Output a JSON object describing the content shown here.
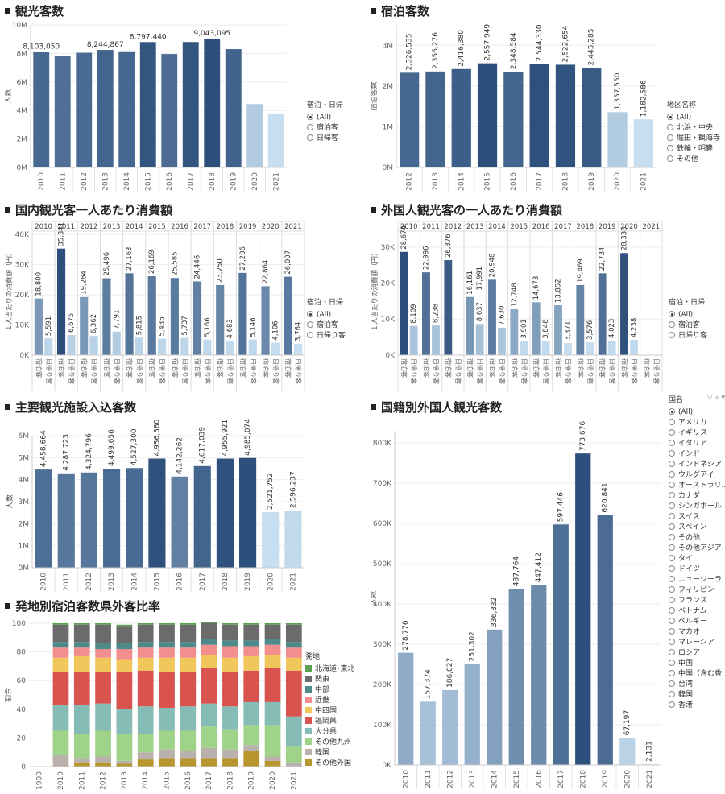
{
  "titles": {
    "p1": "観光客数",
    "p2": "宿泊客数",
    "p3": "国内観光客一人あたり消費額",
    "p4": "外国人観光客の一人あたり消費額",
    "p5": "主要観光施設入込客数",
    "p6": "国籍別外国人観光客数",
    "p7": "発地別宿泊客数県外客比率"
  },
  "legends": {
    "stay_type": {
      "title": "宿泊・日帰",
      "items": [
        "(All)",
        "宿泊客",
        "日帰客"
      ]
    },
    "stay_type2": {
      "title": "宿泊・日帰",
      "items": [
        "(All)",
        "宿泊客",
        "日帰り客"
      ]
    },
    "region": {
      "title": "地区名称",
      "items": [
        "(All)",
        "北浜・中央",
        "堀田・観海寺",
        "鉄輪・明礬",
        "その他"
      ]
    },
    "country": {
      "title": "国名",
      "items": [
        "(All)",
        "アメリカ",
        "イギリス",
        "イタリア",
        "インド",
        "インドネシア",
        "ウルグアイ",
        "オーストラリ...",
        "カナダ",
        "シンガポール",
        "スイス",
        "スペイン",
        "その他",
        "その他アジア",
        "タイ",
        "ドイツ",
        "ニュージーラ...",
        "フィリピン",
        "フランス",
        "ベトナム",
        "ベルギー",
        "マカオ",
        "マレーシア",
        "ロシア",
        "中国",
        "中国（含む香...",
        "台湾",
        "韓国",
        "香港"
      ]
    },
    "origin": {
      "title": "発地",
      "items": [
        "北海道･東北",
        "関東",
        "中部",
        "近畿",
        "中四国",
        "福岡県",
        "大分県",
        "その他九州",
        "韓国",
        "その他外国"
      ]
    }
  },
  "colors": {
    "origin": [
      "#59a14f",
      "#6b6b6b",
      "#4e8a8a",
      "#f28e8e",
      "#f1c75b",
      "#d9534f",
      "#86bcb6",
      "#9fd38a",
      "#bab0ac",
      "#b8962f"
    ]
  },
  "chart_data": [
    {
      "id": "tourists",
      "type": "bar",
      "title": "観光客数",
      "ylabel": "人数",
      "categories": [
        "2010",
        "2011",
        "2012",
        "2013",
        "2014",
        "2015",
        "2016",
        "2017",
        "2018",
        "2019",
        "2020",
        "2021"
      ],
      "values": [
        8103050,
        7850000,
        8050000,
        8244867,
        8150000,
        8797440,
        7960000,
        8800000,
        9043095,
        8300000,
        4450000,
        3750000
      ],
      "labels": [
        "8,103,050",
        "",
        "",
        "8,244,867",
        "",
        "8,797,440",
        "",
        "",
        "9,043,095",
        "",
        "",
        ""
      ],
      "ylim": [
        0,
        10000000
      ],
      "yticks": [
        "0M",
        "2M",
        "4M",
        "6M",
        "8M",
        "10M"
      ]
    },
    {
      "id": "overnight",
      "type": "bar",
      "title": "宿泊客数",
      "ylabel": "宿泊客数",
      "categories": [
        "2012",
        "2013",
        "2014",
        "2015",
        "2016",
        "2017",
        "2018",
        "2019",
        "2020",
        "2021"
      ],
      "values": [
        2326535,
        2356276,
        2416380,
        2557949,
        2348584,
        2544330,
        2522654,
        2445285,
        1357550,
        1182586
      ],
      "labels": [
        "2,326,535",
        "2,356,276",
        "2,416,380",
        "2,557,949",
        "2,348,584",
        "2,544,330",
        "2,522,654",
        "2,445,285",
        "1,357,550",
        "1,182,586"
      ],
      "ylim": [
        0,
        3500000
      ],
      "yticks": [
        "0M",
        "1M",
        "2M",
        "3M"
      ]
    },
    {
      "id": "domestic_spend",
      "type": "bar",
      "title": "国内観光客一人あたり消費額",
      "ylabel": "１人当たりの消費額（円）",
      "years": [
        "2010",
        "2011",
        "2012",
        "2013",
        "2014",
        "2015",
        "2016",
        "2017",
        "2018",
        "2019",
        "2020",
        "2021"
      ],
      "sub_categories": [
        "宿泊客",
        "日帰り客"
      ],
      "series": [
        {
          "name": "宿泊客",
          "values": [
            18800,
            35341,
            19284,
            25496,
            27163,
            26169,
            25585,
            24446,
            23250,
            27286,
            22864,
            26007
          ],
          "labels": [
            "18,800",
            "35,341",
            "19,284",
            "25,496",
            "27,163",
            "26,169",
            "25,585",
            "24,446",
            "23,250",
            "27,286",
            "22,864",
            "26,007"
          ]
        },
        {
          "name": "日帰り客",
          "values": [
            5591,
            6675,
            6362,
            7791,
            5815,
            5436,
            5737,
            5166,
            4683,
            5146,
            4106,
            3764
          ],
          "labels": [
            "5,591",
            "6,675",
            "6,362",
            "7,791",
            "5,815",
            "5,436",
            "5,737",
            "5,166",
            "4,683",
            "5,146",
            "4,106",
            "3,764"
          ]
        }
      ],
      "ylim": [
        0,
        43000
      ],
      "yticks": [
        "0K",
        "10K",
        "20K",
        "30K",
        "40K"
      ]
    },
    {
      "id": "foreign_spend",
      "type": "bar",
      "title": "外国人観光客の一人あたり消費額",
      "ylabel": "１人当たりの消費額（円）",
      "years": [
        "2010",
        "2011",
        "2012",
        "2013",
        "2014",
        "2015",
        "2016",
        "2017",
        "2018",
        "2019",
        "2020",
        "2021"
      ],
      "sub_categories": [
        "宿泊客",
        "日帰り客"
      ],
      "series": [
        {
          "name": "宿泊客",
          "values": [
            28674,
            22996,
            26376,
            16161,
            20948,
            12748,
            14673,
            13852,
            19469,
            22734,
            28336,
            null
          ],
          "labels": [
            "28,674",
            "22,996",
            "26,376",
            "16,161",
            "20,948",
            "12,748",
            "14,673",
            "13,852",
            "19,469",
            "22,734",
            "28,336",
            ""
          ]
        },
        {
          "name": "日帰り客",
          "values": [
            8109,
            8238,
            null,
            8637,
            7630,
            3901,
            3846,
            3371,
            3576,
            4023,
            4238,
            null
          ],
          "labels": [
            "8,109",
            "8,238",
            "",
            "8,637",
            "7,630",
            "3,901",
            "3,846",
            "3,371",
            "3,576",
            "4,023",
            "4,238",
            ""
          ]
        }
      ],
      "extra_labels": {
        "2013_total": "17,991"
      },
      "ylim": [
        0,
        36000
      ],
      "yticks": [
        "0K",
        "10K",
        "20K",
        "30K"
      ]
    },
    {
      "id": "facility_visitors",
      "type": "bar",
      "title": "主要観光施設入込客数",
      "ylabel": "人数",
      "categories": [
        "2010",
        "2011",
        "2012",
        "2013",
        "2014",
        "2015",
        "2016",
        "2017",
        "2018",
        "2019",
        "2020",
        "2021"
      ],
      "values": [
        4458664,
        4287723,
        4324796,
        4499656,
        4527300,
        4956580,
        4142262,
        4617039,
        4955921,
        4985074,
        2521752,
        2596237
      ],
      "labels": [
        "4,458,664",
        "4,287,723",
        "4,324,796",
        "4,499,656",
        "4,527,300",
        "4,956,580",
        "4,142,262",
        "4,617,039",
        "4,955,921",
        "4,985,074",
        "2,521,752",
        "2,596,237"
      ],
      "ylim": [
        0,
        6000000
      ],
      "yticks": [
        "0M",
        "1M",
        "2M",
        "3M",
        "4M",
        "5M",
        "6M"
      ]
    },
    {
      "id": "foreign_by_nationality",
      "type": "bar",
      "title": "国籍別外国人観光客数",
      "ylabel": "人数",
      "categories": [
        "2010",
        "2011",
        "2012",
        "2013",
        "2014",
        "2015",
        "2016",
        "2017",
        "2018",
        "2019",
        "2020",
        "2021"
      ],
      "values": [
        278776,
        157374,
        186027,
        251302,
        336332,
        437764,
        447412,
        597446,
        773676,
        620841,
        67197,
        2131
      ],
      "labels": [
        "278,776",
        "157,374",
        "186,027",
        "251,302",
        "336,332",
        "437,764",
        "447,412",
        "597,446",
        "773,676",
        "620,841",
        "67,197",
        "2,131"
      ],
      "ylim": [
        0,
        830000
      ],
      "yticks": [
        "0K",
        "100K",
        "200K",
        "300K",
        "400K",
        "500K",
        "600K",
        "700K",
        "800K"
      ]
    },
    {
      "id": "origin_ratio",
      "type": "bar",
      "stacked": true,
      "title": "発地別宿泊客数県外客比率",
      "ylabel": "割合",
      "categories": [
        "1900",
        "2010",
        "2011",
        "2012",
        "2013",
        "2014",
        "2015",
        "2016",
        "2017",
        "2018",
        "2019",
        "2020",
        "2021"
      ],
      "series_names": [
        "北海道･東北",
        "関東",
        "中部",
        "近畿",
        "中四国",
        "福岡県",
        "大分県",
        "その他九州",
        "韓国",
        "その他外国"
      ],
      "rows": [
        null,
        [
          1,
          12,
          4,
          7,
          10,
          23,
          18,
          17,
          8,
          0
        ],
        [
          1,
          12,
          4,
          6,
          11,
          23,
          20,
          17,
          3,
          3
        ],
        [
          1,
          13,
          4,
          6,
          10,
          22,
          19,
          18,
          4,
          3
        ],
        [
          1,
          12,
          4,
          7,
          9,
          26,
          17,
          19,
          2,
          2
        ],
        [
          1,
          12,
          4,
          7,
          9,
          25,
          19,
          13,
          5,
          5
        ],
        [
          1,
          12,
          4,
          7,
          10,
          25,
          16,
          13,
          6,
          6
        ],
        [
          1,
          12,
          4,
          7,
          10,
          24,
          17,
          14,
          5,
          6
        ],
        [
          1,
          11,
          4,
          7,
          9,
          25,
          16,
          15,
          7,
          6
        ],
        [
          1,
          11,
          4,
          8,
          10,
          24,
          16,
          14,
          6,
          6
        ],
        [
          1,
          11,
          4,
          7,
          10,
          22,
          16,
          14,
          4,
          11
        ],
        [
          1,
          10,
          4,
          7,
          9,
          24,
          16,
          22,
          3,
          4
        ],
        [
          1,
          12,
          4,
          7,
          9,
          32,
          21,
          11,
          3,
          0
        ]
      ],
      "ylim": [
        0,
        100
      ],
      "yticks": [
        "0",
        "20",
        "40",
        "60",
        "80",
        "100"
      ]
    }
  ]
}
